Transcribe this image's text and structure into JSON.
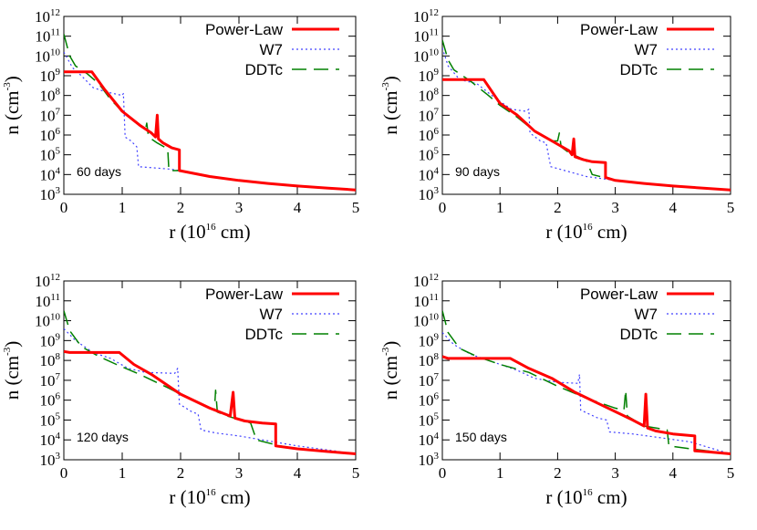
{
  "chart_data": [
    {
      "type": "line",
      "annotation": "60 days",
      "xlabel": "r (10^16 cm)",
      "ylabel": "n (cm^-3)",
      "xlim": [
        0,
        5
      ],
      "ylim_log10": [
        3,
        12
      ],
      "y_scale": "log",
      "x_ticks": [
        "0",
        "1",
        "2",
        "3",
        "4",
        "5"
      ],
      "y_ticks_log10": [
        3,
        4,
        5,
        6,
        7,
        8,
        9,
        10,
        11,
        12
      ],
      "legend_position": "top-right",
      "series": [
        {
          "name": "Power-Law",
          "color": "#ff0000",
          "style": "solid",
          "points_log10y": [
            [
              0,
              9.2
            ],
            [
              0.48,
              9.2
            ],
            [
              0.7,
              8.3
            ],
            [
              1.0,
              7.2
            ],
            [
              1.3,
              6.5
            ],
            [
              1.5,
              6.1
            ],
            [
              1.57,
              5.9
            ],
            [
              1.6,
              7.0
            ],
            [
              1.62,
              5.8
            ],
            [
              1.7,
              5.6
            ],
            [
              1.85,
              5.35
            ],
            [
              1.98,
              5.25
            ],
            [
              1.98,
              4.2
            ],
            [
              2.5,
              3.9
            ],
            [
              3,
              3.7
            ],
            [
              3.5,
              3.55
            ],
            [
              4,
              3.42
            ],
            [
              4.5,
              3.32
            ],
            [
              5,
              3.22
            ]
          ]
        },
        {
          "name": "W7",
          "color": "#4040ff",
          "style": "dotted",
          "points_log10y": [
            [
              0,
              10.2
            ],
            [
              0.15,
              9.4
            ],
            [
              0.3,
              9.0
            ],
            [
              0.5,
              8.4
            ],
            [
              0.7,
              8.2
            ],
            [
              0.85,
              8.1
            ],
            [
              1.0,
              8.0
            ],
            [
              1.02,
              8.1
            ],
            [
              1.05,
              5.9
            ],
            [
              1.15,
              5.7
            ],
            [
              1.25,
              5.4
            ],
            [
              1.28,
              4.4
            ],
            [
              1.5,
              4.35
            ],
            [
              1.8,
              4.28
            ],
            [
              2,
              4.2
            ],
            [
              2.5,
              3.9
            ],
            [
              3,
              3.7
            ],
            [
              3.5,
              3.55
            ],
            [
              4,
              3.42
            ],
            [
              4.5,
              3.32
            ],
            [
              5,
              3.22
            ]
          ]
        },
        {
          "name": "DDTc",
          "color": "#008000",
          "style": "dashed",
          "points_log10y": [
            [
              0,
              11.1
            ],
            [
              0.1,
              10.0
            ],
            [
              0.2,
              9.5
            ],
            [
              0.4,
              9.1
            ],
            [
              0.6,
              8.6
            ],
            [
              0.8,
              7.8
            ],
            [
              1.0,
              7.2
            ],
            [
              1.2,
              6.7
            ],
            [
              1.4,
              6.3
            ],
            [
              1.42,
              6.6
            ],
            [
              1.45,
              5.9
            ],
            [
              1.6,
              5.6
            ],
            [
              1.78,
              5.3
            ],
            [
              1.8,
              4.2
            ],
            [
              2,
              4.2
            ],
            [
              2.5,
              3.9
            ],
            [
              3,
              3.7
            ],
            [
              3.5,
              3.55
            ],
            [
              4,
              3.42
            ],
            [
              4.5,
              3.32
            ],
            [
              5,
              3.22
            ]
          ]
        }
      ]
    },
    {
      "type": "line",
      "annotation": "90 days",
      "xlabel": "r (10^16 cm)",
      "ylabel": "n (cm^-3)",
      "xlim": [
        0,
        5
      ],
      "ylim_log10": [
        3,
        12
      ],
      "y_scale": "log",
      "x_ticks": [
        "0",
        "1",
        "2",
        "3",
        "4",
        "5"
      ],
      "y_ticks_log10": [
        3,
        4,
        5,
        6,
        7,
        8,
        9,
        10,
        11,
        12
      ],
      "legend_position": "top-right",
      "series": [
        {
          "name": "Power-Law",
          "color": "#ff0000",
          "style": "solid",
          "points_log10y": [
            [
              0,
              8.8
            ],
            [
              0.72,
              8.8
            ],
            [
              1.0,
              7.6
            ],
            [
              1.3,
              7.0
            ],
            [
              1.6,
              6.2
            ],
            [
              1.9,
              5.7
            ],
            [
              2.2,
              5.2
            ],
            [
              2.25,
              5.0
            ],
            [
              2.28,
              5.8
            ],
            [
              2.3,
              4.9
            ],
            [
              2.45,
              4.75
            ],
            [
              2.6,
              4.65
            ],
            [
              2.83,
              4.6
            ],
            [
              2.83,
              3.85
            ],
            [
              3,
              3.7
            ],
            [
              3.5,
              3.55
            ],
            [
              4,
              3.42
            ],
            [
              4.5,
              3.32
            ],
            [
              5,
              3.22
            ]
          ]
        },
        {
          "name": "W7",
          "color": "#4040ff",
          "style": "dotted",
          "points_log10y": [
            [
              0,
              10.4
            ],
            [
              0.1,
              9.5
            ],
            [
              0.3,
              8.8
            ],
            [
              0.6,
              8.6
            ],
            [
              0.9,
              7.9
            ],
            [
              1.2,
              7.3
            ],
            [
              1.45,
              7.2
            ],
            [
              1.5,
              7.3
            ],
            [
              1.52,
              6.1
            ],
            [
              1.7,
              5.7
            ],
            [
              1.8,
              5.6
            ],
            [
              1.88,
              4.4
            ],
            [
              2.0,
              4.3
            ],
            [
              2.5,
              3.9
            ],
            [
              3,
              3.7
            ],
            [
              3.5,
              3.55
            ],
            [
              4,
              3.42
            ],
            [
              4.5,
              3.32
            ],
            [
              5,
              3.22
            ]
          ]
        },
        {
          "name": "DDTc",
          "color": "#008000",
          "style": "dashed",
          "points_log10y": [
            [
              0,
              10.8
            ],
            [
              0.1,
              9.8
            ],
            [
              0.2,
              9.3
            ],
            [
              0.5,
              8.7
            ],
            [
              0.8,
              8.0
            ],
            [
              1.0,
              7.5
            ],
            [
              1.3,
              6.9
            ],
            [
              1.6,
              6.2
            ],
            [
              1.9,
              5.7
            ],
            [
              2.0,
              5.7
            ],
            [
              2.03,
              6.1
            ],
            [
              2.06,
              5.4
            ],
            [
              2.2,
              5.1
            ],
            [
              2.5,
              4.7
            ],
            [
              2.6,
              4.0
            ],
            [
              3,
              3.7
            ],
            [
              3.5,
              3.55
            ],
            [
              4,
              3.42
            ],
            [
              4.5,
              3.32
            ],
            [
              5,
              3.22
            ]
          ]
        }
      ]
    },
    {
      "type": "line",
      "annotation": "120 days",
      "xlabel": "r (10^16 cm)",
      "ylabel": "n (cm^-3)",
      "xlim": [
        0,
        5
      ],
      "ylim_log10": [
        3,
        12
      ],
      "y_scale": "log",
      "x_ticks": [
        "0",
        "1",
        "2",
        "3",
        "4",
        "5"
      ],
      "y_ticks_log10": [
        3,
        4,
        5,
        6,
        7,
        8,
        9,
        10,
        11,
        12
      ],
      "legend_position": "top-right",
      "series": [
        {
          "name": "Power-Law",
          "color": "#ff0000",
          "style": "solid",
          "points_log10y": [
            [
              0,
              8.45
            ],
            [
              0.1,
              8.4
            ],
            [
              0.95,
              8.4
            ],
            [
              1.2,
              7.8
            ],
            [
              1.5,
              7.3
            ],
            [
              2.0,
              6.3
            ],
            [
              2.5,
              5.6
            ],
            [
              2.85,
              5.2
            ],
            [
              2.9,
              6.4
            ],
            [
              2.93,
              5.1
            ],
            [
              3.1,
              4.95
            ],
            [
              3.4,
              4.85
            ],
            [
              3.63,
              4.8
            ],
            [
              3.63,
              3.7
            ],
            [
              4,
              3.55
            ],
            [
              4.5,
              3.42
            ],
            [
              5,
              3.3
            ]
          ]
        },
        {
          "name": "W7",
          "color": "#4040ff",
          "style": "dotted",
          "points_log10y": [
            [
              0,
              9.6
            ],
            [
              0.2,
              9.0
            ],
            [
              0.5,
              8.4
            ],
            [
              0.8,
              8.1
            ],
            [
              1.1,
              7.6
            ],
            [
              1.4,
              7.4
            ],
            [
              1.9,
              7.35
            ],
            [
              1.95,
              7.6
            ],
            [
              1.98,
              5.8
            ],
            [
              2.2,
              5.4
            ],
            [
              2.3,
              5.3
            ],
            [
              2.35,
              4.5
            ],
            [
              2.6,
              4.35
            ],
            [
              3,
              4.2
            ],
            [
              3.5,
              3.95
            ],
            [
              4,
              3.7
            ],
            [
              4.5,
              3.5
            ],
            [
              5,
              3.3
            ]
          ]
        },
        {
          "name": "DDTc",
          "color": "#008000",
          "style": "dashed",
          "points_log10y": [
            [
              0,
              10.5
            ],
            [
              0.1,
              9.5
            ],
            [
              0.3,
              8.7
            ],
            [
              0.6,
              8.2
            ],
            [
              0.9,
              7.8
            ],
            [
              1.3,
              7.3
            ],
            [
              1.8,
              6.6
            ],
            [
              2.2,
              6.0
            ],
            [
              2.58,
              5.5
            ],
            [
              2.6,
              6.5
            ],
            [
              2.63,
              5.4
            ],
            [
              2.8,
              5.2
            ],
            [
              3.2,
              4.85
            ],
            [
              3.3,
              4.0
            ],
            [
              3.7,
              3.7
            ],
            [
              4,
              3.55
            ],
            [
              4.5,
              3.42
            ],
            [
              5,
              3.3
            ]
          ]
        }
      ]
    },
    {
      "type": "line",
      "annotation": "150 days",
      "xlabel": "r (10^16 cm)",
      "ylabel": "n (cm^-3)",
      "xlim": [
        0,
        5
      ],
      "ylim_log10": [
        3,
        12
      ],
      "y_scale": "log",
      "x_ticks": [
        "0",
        "1",
        "2",
        "3",
        "4",
        "5"
      ],
      "y_ticks_log10": [
        3,
        4,
        5,
        6,
        7,
        8,
        9,
        10,
        11,
        12
      ],
      "legend_position": "top-right",
      "series": [
        {
          "name": "Power-Law",
          "color": "#ff0000",
          "style": "solid",
          "points_log10y": [
            [
              0,
              8.2
            ],
            [
              0.1,
              8.1
            ],
            [
              1.18,
              8.1
            ],
            [
              1.5,
              7.6
            ],
            [
              1.9,
              7.1
            ],
            [
              2.3,
              6.4
            ],
            [
              2.8,
              5.7
            ],
            [
              3.3,
              5.0
            ],
            [
              3.5,
              4.7
            ],
            [
              3.53,
              6.3
            ],
            [
              3.56,
              4.6
            ],
            [
              3.7,
              4.45
            ],
            [
              4.0,
              4.3
            ],
            [
              4.38,
              4.2
            ],
            [
              4.38,
              3.45
            ],
            [
              4.6,
              3.4
            ],
            [
              5,
              3.3
            ]
          ]
        },
        {
          "name": "W7",
          "color": "#4040ff",
          "style": "dotted",
          "points_log10y": [
            [
              0,
              9.4
            ],
            [
              0.2,
              8.8
            ],
            [
              0.5,
              8.3
            ],
            [
              0.9,
              7.9
            ],
            [
              1.3,
              7.5
            ],
            [
              1.6,
              7.1
            ],
            [
              2.0,
              6.9
            ],
            [
              2.35,
              6.85
            ],
            [
              2.38,
              7.3
            ],
            [
              2.4,
              5.5
            ],
            [
              2.7,
              5.1
            ],
            [
              2.85,
              5.0
            ],
            [
              2.9,
              4.4
            ],
            [
              3.3,
              4.3
            ],
            [
              3.8,
              4.1
            ],
            [
              4.3,
              3.9
            ],
            [
              4.7,
              3.55
            ],
            [
              5,
              3.3
            ]
          ]
        },
        {
          "name": "DDTc",
          "color": "#008000",
          "style": "dashed",
          "points_log10y": [
            [
              0,
              10.5
            ],
            [
              0.1,
              9.4
            ],
            [
              0.3,
              8.6
            ],
            [
              0.6,
              8.2
            ],
            [
              1.0,
              7.8
            ],
            [
              1.5,
              7.4
            ],
            [
              2.0,
              6.7
            ],
            [
              2.5,
              6.1
            ],
            [
              3.0,
              5.6
            ],
            [
              3.15,
              5.5
            ],
            [
              3.18,
              6.5
            ],
            [
              3.21,
              5.2
            ],
            [
              3.5,
              4.7
            ],
            [
              3.9,
              4.5
            ],
            [
              3.93,
              3.7
            ],
            [
              4.3,
              3.55
            ],
            [
              5,
              3.3
            ]
          ]
        }
      ]
    }
  ]
}
